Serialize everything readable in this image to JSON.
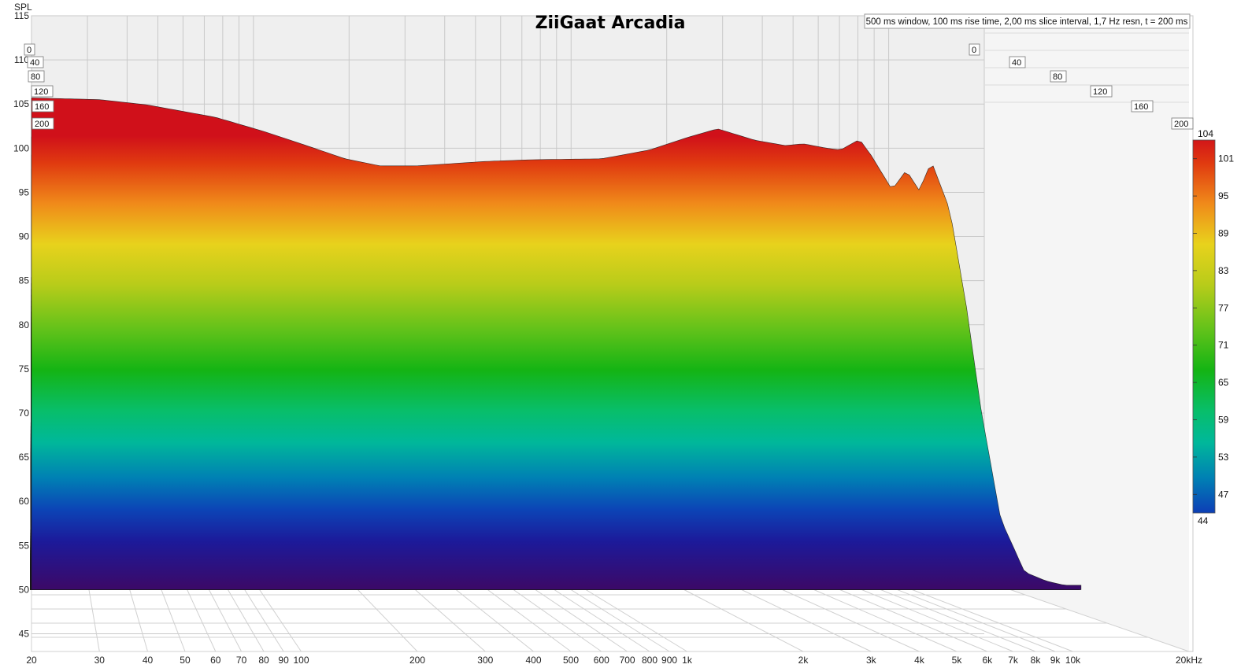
{
  "chart_data": {
    "type": "waterfall",
    "title": "ZiiGaat Arcadia",
    "settings_text": "500 ms window, 100 ms rise time, 2,00 ms slice interval, 1,7 Hz resn, t = 200 ms",
    "ylabel": "SPL",
    "xunit": "kHz",
    "ylim": [
      43,
      115
    ],
    "xlim": [
      20,
      20000
    ],
    "x_scale": "log",
    "grid": true,
    "y_ticks": [
      115,
      110,
      105,
      100,
      95,
      90,
      85,
      80,
      75,
      70,
      65,
      60,
      55,
      50,
      45
    ],
    "x_ticks": [
      {
        "v": 20,
        "t": "20"
      },
      {
        "v": 30,
        "t": "30"
      },
      {
        "v": 40,
        "t": "40"
      },
      {
        "v": 50,
        "t": "50"
      },
      {
        "v": 60,
        "t": "60"
      },
      {
        "v": 70,
        "t": "70"
      },
      {
        "v": 80,
        "t": "80"
      },
      {
        "v": 90,
        "t": "90"
      },
      {
        "v": 100,
        "t": "100"
      },
      {
        "v": 200,
        "t": "200"
      },
      {
        "v": 300,
        "t": "300"
      },
      {
        "v": 400,
        "t": "400"
      },
      {
        "v": 500,
        "t": "500"
      },
      {
        "v": 600,
        "t": "600"
      },
      {
        "v": 700,
        "t": "700"
      },
      {
        "v": 800,
        "t": "800"
      },
      {
        "v": 900,
        "t": "900"
      },
      {
        "v": 1000,
        "t": "1k"
      },
      {
        "v": 2000,
        "t": "2k"
      },
      {
        "v": 3000,
        "t": "3k"
      },
      {
        "v": 4000,
        "t": "4k"
      },
      {
        "v": 5000,
        "t": "5k"
      },
      {
        "v": 6000,
        "t": "6k"
      },
      {
        "v": 7000,
        "t": "7k"
      },
      {
        "v": 8000,
        "t": "8k"
      },
      {
        "v": 9000,
        "t": "9k"
      },
      {
        "v": 10000,
        "t": "10k"
      },
      {
        "v": 20000,
        "t": "20kHz"
      }
    ],
    "time_ticks_ms": [
      0,
      40,
      80,
      120,
      160,
      200
    ],
    "time_labels": [
      "0",
      "40",
      "80",
      "120",
      "160",
      "200"
    ],
    "time_window_ms": 200,
    "colorbar": {
      "min": 44,
      "max": 104,
      "ticks": [
        104,
        101,
        95,
        89,
        83,
        77,
        71,
        65,
        59,
        53,
        47,
        44
      ]
    },
    "first_slice": {
      "time_ms": 0,
      "freq_hz": [
        20,
        30,
        40,
        60,
        80,
        100,
        130,
        160,
        200,
        300,
        400,
        600,
        800,
        1000,
        1200,
        1500,
        1800,
        2000,
        2300,
        2500,
        2800,
        3000,
        3400,
        3700,
        4000,
        4300,
        4800,
        5300,
        5800,
        6500,
        7500,
        8500,
        9500
      ],
      "spl_db": [
        105.7,
        105.5,
        104.9,
        103.5,
        101.9,
        100.5,
        98.8,
        98.0,
        98.0,
        98.5,
        98.7,
        98.8,
        99.8,
        101.2,
        102.2,
        100.9,
        100.3,
        100.5,
        100.0,
        99.8,
        101.0,
        99.2,
        95.3,
        97.5,
        95.2,
        98.5,
        93.0,
        82.0,
        70.0,
        58.0,
        52.0,
        51.0,
        50.5
      ]
    },
    "floor_db": 50
  }
}
